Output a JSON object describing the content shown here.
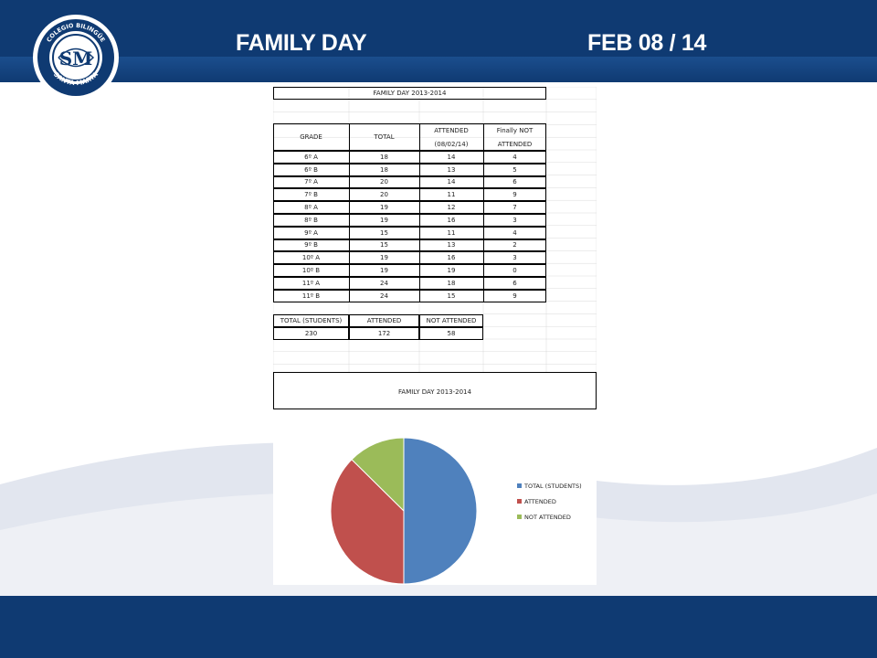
{
  "slide": {
    "title": "FAMILY DAY",
    "date": "FEB 08 / 14",
    "logo_text_top": "COLEGIO BILINGÜE",
    "logo_text_bottom": "SANTA MARTA",
    "logo_monogram": "SM",
    "colors": {
      "bar": "#0f3a72",
      "white": "#ffffff"
    }
  },
  "sheet": {
    "title": "FAMILY DAY 2013-2014",
    "headers": [
      "GRADE",
      "TOTAL",
      "ATTENDED",
      "(08/02/14)",
      "Finally NOT",
      "ATTENDED"
    ],
    "rows": [
      [
        "6º A",
        "18",
        "14",
        "4"
      ],
      [
        "6º B",
        "18",
        "13",
        "5"
      ],
      [
        "7º A",
        "20",
        "14",
        "6"
      ],
      [
        "7º B",
        "20",
        "11",
        "9"
      ],
      [
        "8º A",
        "19",
        "12",
        "7"
      ],
      [
        "8º B",
        "19",
        "16",
        "3"
      ],
      [
        "9º A",
        "15",
        "11",
        "4"
      ],
      [
        "9º B",
        "15",
        "13",
        "2"
      ],
      [
        "10º A",
        "19",
        "16",
        "3"
      ],
      [
        "10º B",
        "19",
        "19",
        "0"
      ],
      [
        "11º A",
        "24",
        "18",
        "6"
      ],
      [
        "11º B",
        "24",
        "15",
        "9"
      ]
    ],
    "summary_headers": [
      "TOTAL (STUDENTS)",
      "ATTENDED",
      "NOT ATTENDED"
    ],
    "summary_values": [
      "230",
      "172",
      "58"
    ]
  },
  "chart_data": {
    "type": "pie",
    "title": "FAMILY DAY 2013-2014",
    "categories": [
      "TOTAL (STUDENTS)",
      "ATTENDED",
      "NOT ATTENDED"
    ],
    "values": [
      230,
      172,
      58
    ],
    "colors": [
      "#4f81bd",
      "#c0504d",
      "#9bbb59"
    ],
    "legend": "right"
  }
}
